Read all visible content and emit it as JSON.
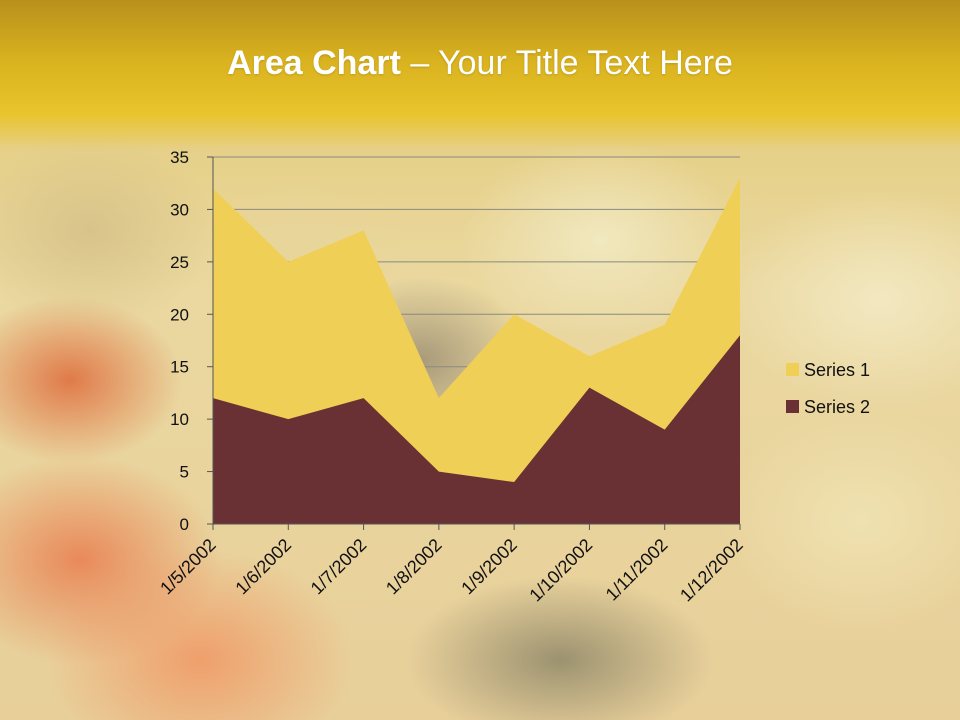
{
  "slide": {
    "title_bold": "Area Chart",
    "title_rest": " – Your Title Text Here"
  },
  "chart_data": {
    "type": "area",
    "categories": [
      "1/5/2002",
      "1/6/2002",
      "1/7/2002",
      "1/8/2002",
      "1/9/2002",
      "1/10/2002",
      "1/11/2002",
      "1/12/2002"
    ],
    "series": [
      {
        "name": "Series 1",
        "values": [
          32,
          25,
          28,
          12,
          20,
          16,
          19,
          33
        ],
        "color": "#efcf55"
      },
      {
        "name": "Series 2",
        "values": [
          12,
          10,
          12,
          5,
          4,
          13,
          9,
          18
        ],
        "color": "#6a3134"
      }
    ],
    "y_ticks": [
      0,
      5,
      10,
      15,
      20,
      25,
      30,
      35
    ],
    "ylim": [
      0,
      35
    ],
    "grid": "horizontal",
    "legend_position": "right"
  }
}
